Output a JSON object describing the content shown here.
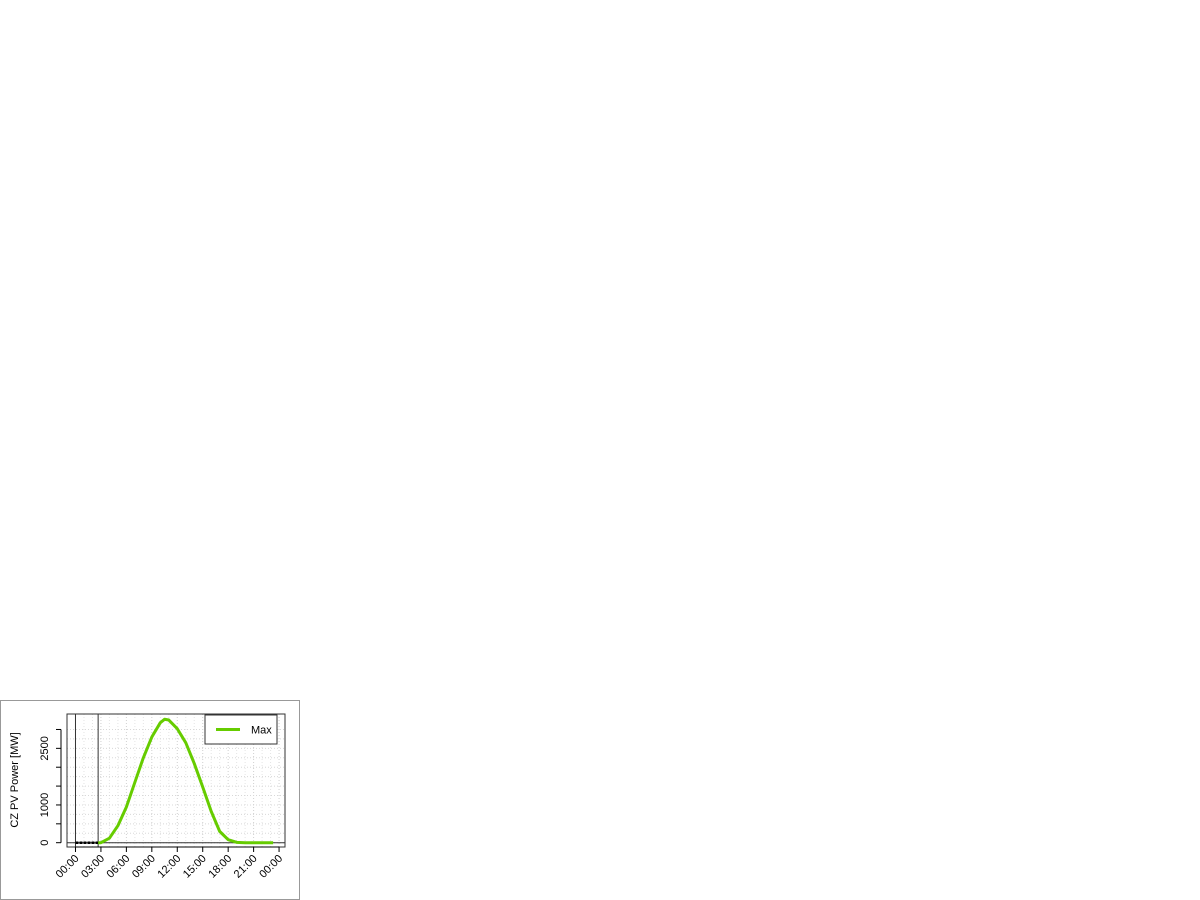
{
  "chart_data": {
    "type": "line",
    "ylabel": "CZ PV Power [MW]",
    "xlabel": "",
    "xlim_hours": [
      -1,
      24.7
    ],
    "ylim": [
      -114,
      3410
    ],
    "x_tick_labels": [
      "00:00",
      "03:00",
      "06:00",
      "09:00",
      "12:00",
      "15:00",
      "18:00",
      "21:00",
      "00:00"
    ],
    "x_tick_hours": [
      0,
      3,
      6,
      9,
      12,
      15,
      18,
      21,
      24
    ],
    "y_ticks": [
      0,
      500,
      1000,
      1500,
      2000,
      2500,
      3000
    ],
    "y_tick_labels": {
      "0": "0",
      "1000": "1000",
      "2500": "2500"
    },
    "grid": true,
    "legend_position": "top-right",
    "vertical_markers_hours": [
      0,
      2.67
    ],
    "series": [
      {
        "name": "Max",
        "color": "#66cc00",
        "x_hours": [
          2.67,
          3,
          4,
          5,
          6,
          7,
          8,
          9,
          10,
          10.5,
          11,
          12,
          13,
          14,
          15,
          16,
          17,
          18,
          19,
          20,
          21,
          22,
          23,
          23.3
        ],
        "values": [
          0,
          0,
          120,
          450,
          945,
          1600,
          2250,
          2800,
          3180,
          3270,
          3250,
          3020,
          2650,
          2100,
          1475,
          830,
          300,
          80,
          10,
          0,
          0,
          0,
          0,
          0
        ]
      },
      {
        "color": "#000000",
        "dashed": true,
        "x_hours": [
          0,
          2.75
        ],
        "values": [
          0,
          0
        ]
      }
    ]
  }
}
